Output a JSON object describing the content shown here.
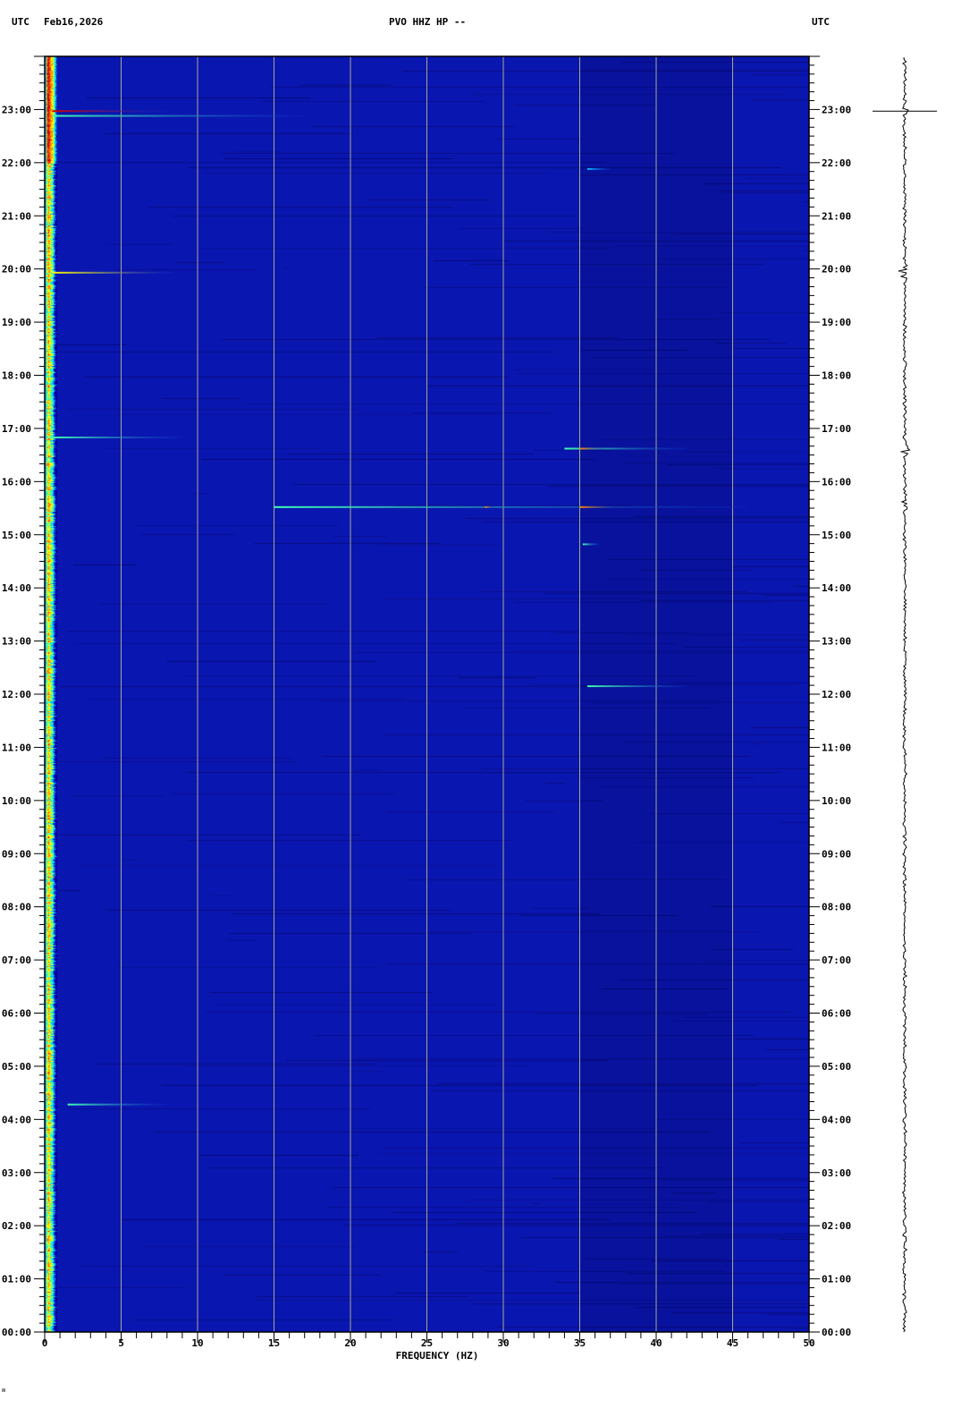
{
  "header": {
    "left_tz": "UTC",
    "date": "Feb16,2026",
    "station": "PVO HHZ HP --",
    "right_tz": "UTC"
  },
  "footer_mark": "ʍ",
  "chart_data": {
    "type": "heatmap",
    "title": "PVO HHZ HP --",
    "xlabel": "FREQUENCY (HZ)",
    "ylabel": "UTC",
    "xlim": [
      0,
      50
    ],
    "ylim_hours": [
      0,
      24
    ],
    "x_ticks": [
      "0",
      "5",
      "10",
      "15",
      "20",
      "25",
      "30",
      "35",
      "40",
      "45",
      "50"
    ],
    "y_ticks": [
      "00:00",
      "01:00",
      "02:00",
      "03:00",
      "04:00",
      "05:00",
      "06:00",
      "07:00",
      "08:00",
      "09:00",
      "10:00",
      "11:00",
      "12:00",
      "13:00",
      "14:00",
      "15:00",
      "16:00",
      "17:00",
      "18:00",
      "19:00",
      "20:00",
      "21:00",
      "22:00",
      "23:00"
    ],
    "grid": true,
    "grid_interval_hz": 5,
    "colormap": [
      "#0000a0",
      "#1030d0",
      "#00c0ff",
      "#40ffb0",
      "#ffff00",
      "#ff8000",
      "#d00000"
    ],
    "background_color": "#0a16b0",
    "grid_color": "#a8a890",
    "low_frequency_band_hz": [
      0,
      0.8
    ],
    "events": [
      {
        "time_h": 22.97,
        "fmin": 0.5,
        "fmax": 8.0,
        "intensity": 0.95
      },
      {
        "time_h": 22.88,
        "fmin": 0.5,
        "fmax": 17.0,
        "intensity": 0.45
      },
      {
        "time_h": 19.93,
        "fmin": 0.5,
        "fmax": 8.5,
        "intensity": 0.6
      },
      {
        "time_h": 16.83,
        "fmin": 0.5,
        "fmax": 9.0,
        "intensity": 0.5
      },
      {
        "time_h": 16.62,
        "fmin": 34.0,
        "fmax": 42.0,
        "intensity": 0.55
      },
      {
        "time_h": 16.62,
        "fmin": 35.0,
        "fmax": 36.6,
        "intensity": 0.8
      },
      {
        "time_h": 15.52,
        "fmin": 15.0,
        "fmax": 46.0,
        "intensity": 0.45
      },
      {
        "time_h": 15.52,
        "fmin": 28.8,
        "fmax": 29.3,
        "intensity": 0.85
      },
      {
        "time_h": 15.52,
        "fmin": 35.0,
        "fmax": 37.5,
        "intensity": 0.8
      },
      {
        "time_h": 14.82,
        "fmin": 35.2,
        "fmax": 36.3,
        "intensity": 0.5
      },
      {
        "time_h": 12.15,
        "fmin": 35.5,
        "fmax": 42.0,
        "intensity": 0.45
      },
      {
        "time_h": 21.88,
        "fmin": 35.5,
        "fmax": 37.0,
        "intensity": 0.35
      },
      {
        "time_h": 4.28,
        "fmin": 1.5,
        "fmax": 8.0,
        "intensity": 0.45
      }
    ],
    "trace_bursts_h": [
      22.97,
      19.93,
      16.62,
      15.52
    ]
  }
}
